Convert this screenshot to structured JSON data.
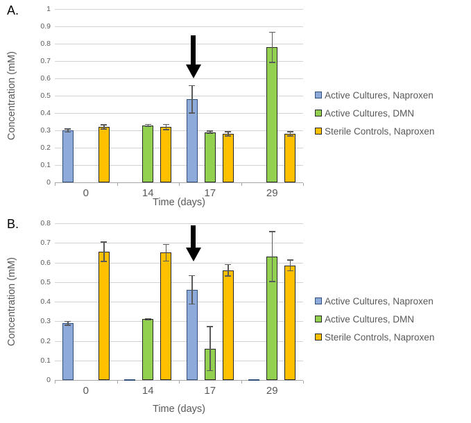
{
  "figure": {
    "background": "#FFFFFF",
    "panels": [
      "A.",
      "B."
    ]
  },
  "colors": {
    "text": "#595959",
    "panel_label": "#000000",
    "gridline": "#D2D2D2",
    "axis_line": "#A6A6A6",
    "error_bar": "#595959",
    "arrow": "#000000",
    "series_blue": "#8EAADB",
    "series_green": "#92D050",
    "series_yellow": "#FFC000"
  },
  "chart_data": [
    {
      "type": "bar",
      "panel": "A.",
      "xlabel": "Time (days)",
      "ylabel": "Concentration (mM)",
      "categories": [
        "0",
        "14",
        "17",
        "29"
      ],
      "ylim": [
        0,
        1
      ],
      "ytick_step": 0.1,
      "ytick_labels": [
        "0",
        "0.1",
        "0.2",
        "0.3",
        "0.4",
        "0.5",
        "0.6",
        "0.7",
        "0.8",
        "0.9",
        "1"
      ],
      "grid": true,
      "legend_position": "right",
      "series": [
        {
          "name": "Active Cultures, Naproxen",
          "fill": "#8EAADB",
          "border": "#2F4F79",
          "values": [
            0.3,
            null,
            0.48,
            null
          ],
          "errors": [
            0.012,
            null,
            0.082,
            null
          ]
        },
        {
          "name": "Active Cultures, DMN",
          "fill": "#92D050",
          "border": "#262626",
          "values": [
            null,
            0.33,
            0.29,
            0.78
          ],
          "errors": [
            null,
            0.008,
            0.01,
            0.09
          ]
        },
        {
          "name": "Sterile Controls, Naproxen",
          "fill": "#FFC000",
          "border": "#262626",
          "values": [
            0.32,
            0.32,
            0.28,
            0.28
          ],
          "errors": [
            0.015,
            0.018,
            0.015,
            0.015
          ]
        }
      ],
      "annotation_arrow": {
        "category": "17",
        "series": "Active Cultures, Naproxen",
        "value_top": 0.85,
        "value_tip": 0.6
      }
    },
    {
      "type": "bar",
      "panel": "B.",
      "xlabel": "Time (days)",
      "ylabel": "Concentration (mM)",
      "categories": [
        "0",
        "14",
        "17",
        "29"
      ],
      "ylim": [
        0,
        0.8
      ],
      "ytick_step": 0.1,
      "ytick_labels": [
        "0",
        "0.1",
        "0.2",
        "0.3",
        "0.4",
        "0.5",
        "0.6",
        "0.7",
        "0.8"
      ],
      "grid": true,
      "legend_position": "right",
      "series": [
        {
          "name": "Active Cultures, Naproxen",
          "fill": "#8EAADB",
          "border": "#2F4F79",
          "values": [
            0.29,
            0.003,
            0.46,
            0.005
          ],
          "errors": [
            0.012,
            null,
            0.075,
            null
          ]
        },
        {
          "name": "Active Cultures, DMN",
          "fill": "#92D050",
          "border": "#262626",
          "values": [
            null,
            0.31,
            0.16,
            0.63
          ],
          "errors": [
            null,
            0.006,
            0.115,
            0.13
          ]
        },
        {
          "name": "Sterile Controls, Naproxen",
          "fill": "#FFC000",
          "border": "#262626",
          "values": [
            0.655,
            0.65,
            0.56,
            0.585
          ],
          "errors": [
            0.053,
            0.045,
            0.032,
            0.03
          ]
        }
      ],
      "annotation_arrow": {
        "category": "17",
        "series": "Active Cultures, Naproxen",
        "value_top": 0.79,
        "value_tip": 0.605
      }
    }
  ]
}
